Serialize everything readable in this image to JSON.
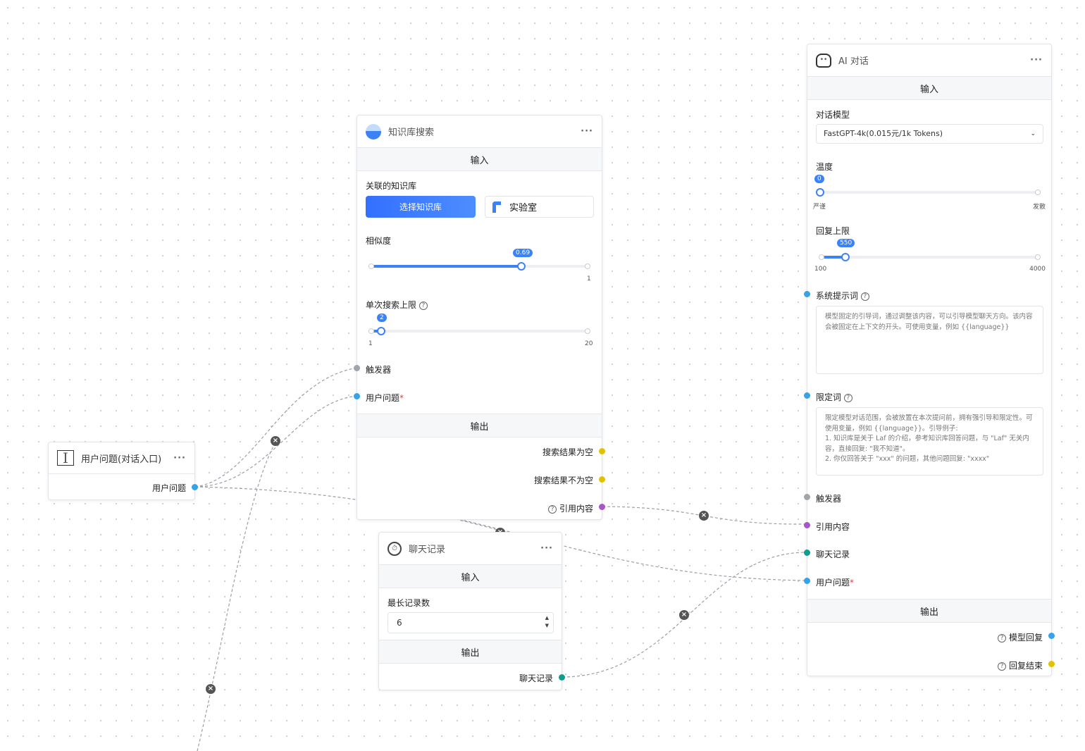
{
  "colors": {
    "accent": "#3b82f6",
    "blue_port": "#36a3e8",
    "yellow_port": "#e0c300",
    "purple_port": "#a855c8",
    "teal_port": "#0f9d8f",
    "gray_port": "#a0a4ab"
  },
  "user_node": {
    "title": "用户问题(对话入口)",
    "output": "用户问题"
  },
  "kb_node": {
    "title": "知识库搜索",
    "input_section": "输入",
    "linked_kb_label": "关联的知识库",
    "select_button": "选择知识库",
    "kb_item": "实验室",
    "similarity_label": "相似度",
    "similarity_value": "0.69",
    "similarity_max": "1",
    "limit_label": "单次搜索上限",
    "limit_value": "2",
    "limit_min": "1",
    "limit_max": "20",
    "trigger": "触发器",
    "user_question": "用户问题",
    "output_section": "输出",
    "out_empty": "搜索结果为空",
    "out_not_empty": "搜索结果不为空",
    "out_quote": "引用内容"
  },
  "history_node": {
    "title": "聊天记录",
    "input_section": "输入",
    "max_label": "最长记录数",
    "max_value": "6",
    "output_section": "输出",
    "out_history": "聊天记录"
  },
  "ai_node": {
    "title": "AI 对话",
    "input_section": "输入",
    "model_label": "对话模型",
    "model_value": "FastGPT-4k(0.015元/1k Tokens)",
    "temp_label": "温度",
    "temp_value": "0",
    "temp_min": "严谨",
    "temp_max": "发散",
    "reply_label": "回复上限",
    "reply_value": "550",
    "reply_min": "100",
    "reply_max": "4000",
    "system_label": "系统提示词",
    "system_placeholder": "模型固定的引导词，通过调整该内容，可以引导模型聊天方向。该内容会被固定在上下文的开头。可使用变量，例如 {{language}}",
    "limit_label": "限定词",
    "limit_placeholder": "限定模型对话范围，会被放置在本次提问前，拥有强引导和限定性。可使用变量，例如 {{language}}。引导例子:\n1. 知识库是关于 Laf 的介绍，参考知识库回答问题，与 \"Laf\" 无关内容，直接回复: \"我不知道\"。\n2. 你仅回答关于 \"xxx\" 的问题，其他问题回复: \"xxxx\"",
    "trigger": "触发器",
    "quote": "引用内容",
    "history": "聊天记录",
    "user_question": "用户问题",
    "output_section": "输出",
    "out_reply": "模型回复",
    "out_end": "回复结束"
  },
  "more_label": "···",
  "delete_edge": "×",
  "help": "?"
}
